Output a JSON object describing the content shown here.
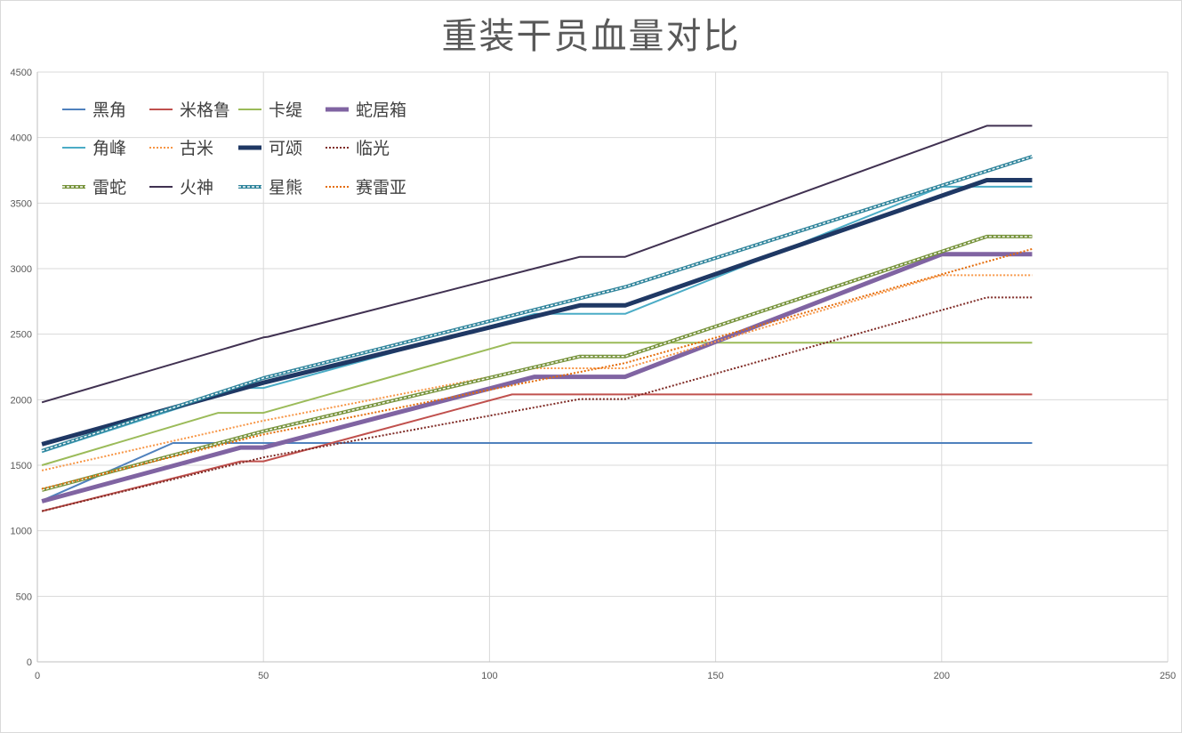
{
  "chart_data": {
    "type": "line",
    "title": "重装干员血量对比",
    "xlabel": "",
    "ylabel": "",
    "xlim": [
      0,
      250
    ],
    "ylim": [
      0,
      4500
    ],
    "x_ticks": [
      0,
      50,
      100,
      150,
      200,
      250
    ],
    "y_ticks": [
      0,
      500,
      1000,
      1500,
      2000,
      2500,
      3000,
      3500,
      4000,
      4500
    ],
    "grid": true,
    "legend_position": "top-left",
    "series": [
      {
        "name": "黑角",
        "color": "#4f81bd",
        "style": "solid",
        "width": 2,
        "points": [
          [
            1,
            1230
          ],
          [
            30,
            1670
          ],
          [
            220,
            1670
          ]
        ]
      },
      {
        "name": "米格鲁",
        "color": "#c0504d",
        "style": "solid",
        "width": 2,
        "points": [
          [
            1,
            1150
          ],
          [
            45,
            1530
          ],
          [
            50,
            1530
          ],
          [
            105,
            2040
          ],
          [
            220,
            2040
          ]
        ]
      },
      {
        "name": "卡缇",
        "color": "#9bbb59",
        "style": "solid",
        "width": 2,
        "points": [
          [
            1,
            1500
          ],
          [
            40,
            1900
          ],
          [
            50,
            1900
          ],
          [
            105,
            2435
          ],
          [
            220,
            2435
          ]
        ]
      },
      {
        "name": "蛇居箱",
        "color": "#8064a2",
        "style": "solid",
        "width": 5,
        "points": [
          [
            1,
            1225
          ],
          [
            45,
            1635
          ],
          [
            50,
            1635
          ],
          [
            110,
            2175
          ],
          [
            130,
            2175
          ],
          [
            200,
            3110
          ],
          [
            220,
            3110
          ]
        ]
      },
      {
        "name": "角峰",
        "color": "#4bacc6",
        "style": "solid",
        "width": 2,
        "points": [
          [
            1,
            1600
          ],
          [
            45,
            2090
          ],
          [
            50,
            2090
          ],
          [
            110,
            2655
          ],
          [
            130,
            2655
          ],
          [
            200,
            3625
          ],
          [
            220,
            3625
          ]
        ]
      },
      {
        "name": "古米",
        "color": "#f79646",
        "style": "dotted",
        "width": 2,
        "points": [
          [
            1,
            1460
          ],
          [
            50,
            1840
          ],
          [
            110,
            2240
          ],
          [
            130,
            2240
          ],
          [
            200,
            2950
          ],
          [
            220,
            2950
          ]
        ]
      },
      {
        "name": "可颂",
        "color": "#1f3864",
        "style": "solid",
        "width": 5,
        "points": [
          [
            1,
            1660
          ],
          [
            50,
            2130
          ],
          [
            120,
            2720
          ],
          [
            130,
            2720
          ],
          [
            210,
            3675
          ],
          [
            220,
            3675
          ]
        ]
      },
      {
        "name": "临光",
        "color": "#7f2b26",
        "style": "dotted",
        "width": 2,
        "points": [
          [
            1,
            1150
          ],
          [
            50,
            1560
          ],
          [
            120,
            2005
          ],
          [
            130,
            2005
          ],
          [
            210,
            2780
          ],
          [
            220,
            2780
          ]
        ]
      },
      {
        "name": "雷蛇",
        "color": "#77933c",
        "style": "double-dash",
        "width": 3,
        "points": [
          [
            1,
            1310
          ],
          [
            50,
            1760
          ],
          [
            120,
            2330
          ],
          [
            130,
            2330
          ],
          [
            210,
            3245
          ],
          [
            220,
            3245
          ]
        ]
      },
      {
        "name": "火神",
        "color": "#403151",
        "style": "solid",
        "width": 2,
        "points": [
          [
            1,
            1980
          ],
          [
            50,
            2475
          ],
          [
            51,
            2480
          ],
          [
            120,
            3090
          ],
          [
            130,
            3090
          ],
          [
            210,
            4090
          ],
          [
            220,
            4090
          ]
        ]
      },
      {
        "name": "星熊",
        "color": "#31859c",
        "style": "double-dash",
        "width": 3,
        "points": [
          [
            1,
            1610
          ],
          [
            50,
            2165
          ],
          [
            130,
            2860
          ],
          [
            220,
            3855
          ]
        ]
      },
      {
        "name": "赛雷亚",
        "color": "#e46c0a",
        "style": "dotted",
        "width": 2,
        "points": [
          [
            1,
            1320
          ],
          [
            50,
            1735
          ],
          [
            130,
            2280
          ],
          [
            220,
            3150
          ]
        ]
      }
    ]
  }
}
